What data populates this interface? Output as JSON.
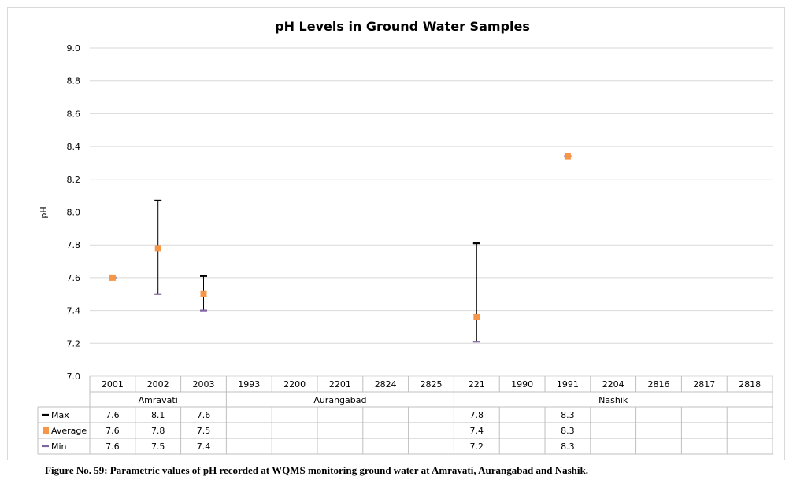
{
  "caption": "Figure No. 59: Parametric values of pH recorded at WQMS monitoring ground water at Amravati, Aurangabad and Nashik.",
  "chart_data": {
    "type": "scatter",
    "title": "pH Levels in Ground Water Samples",
    "ylabel": "pH",
    "xlabel": "",
    "ylim": [
      7.0,
      9.0
    ],
    "yticks": [
      "7.0",
      "7.2",
      "7.4",
      "7.6",
      "7.8",
      "8.0",
      "8.2",
      "8.4",
      "8.6",
      "8.8",
      "9.0"
    ],
    "grid": true,
    "categories": [
      "2001",
      "2002",
      "2003",
      "1993",
      "2200",
      "2201",
      "2824",
      "2825",
      "221",
      "1990",
      "1991",
      "2204",
      "2816",
      "2817",
      "2818"
    ],
    "groups": [
      {
        "name": "Amravati",
        "count": 3
      },
      {
        "name": "Aurangabad",
        "count": 5
      },
      {
        "name": "Nashik",
        "count": 7
      }
    ],
    "series": [
      {
        "name": "Max",
        "color": "#000000",
        "marker": "dash",
        "values": [
          7.6,
          8.07,
          7.61,
          null,
          null,
          null,
          null,
          null,
          7.81,
          null,
          8.34,
          null,
          null,
          null,
          null
        ],
        "labels": [
          "7.6",
          "8.1",
          "7.6",
          "",
          "",
          "",
          "",
          "",
          "7.8",
          "",
          "8.3",
          "",
          "",
          "",
          ""
        ]
      },
      {
        "name": "Average",
        "color": "#f79646",
        "marker": "square",
        "values": [
          7.6,
          7.78,
          7.5,
          null,
          null,
          null,
          null,
          null,
          7.36,
          null,
          8.34,
          null,
          null,
          null,
          null
        ],
        "labels": [
          "7.6",
          "7.8",
          "7.5",
          "",
          "",
          "",
          "",
          "",
          "7.4",
          "",
          "8.3",
          "",
          "",
          "",
          ""
        ]
      },
      {
        "name": "Min",
        "color": "#8064a2",
        "marker": "dash",
        "values": [
          7.6,
          7.5,
          7.4,
          null,
          null,
          null,
          null,
          null,
          7.21,
          null,
          8.34,
          null,
          null,
          null,
          null
        ],
        "labels": [
          "7.6",
          "7.5",
          "7.4",
          "",
          "",
          "",
          "",
          "",
          "7.2",
          "",
          "8.3",
          "",
          "",
          "",
          ""
        ]
      }
    ]
  }
}
